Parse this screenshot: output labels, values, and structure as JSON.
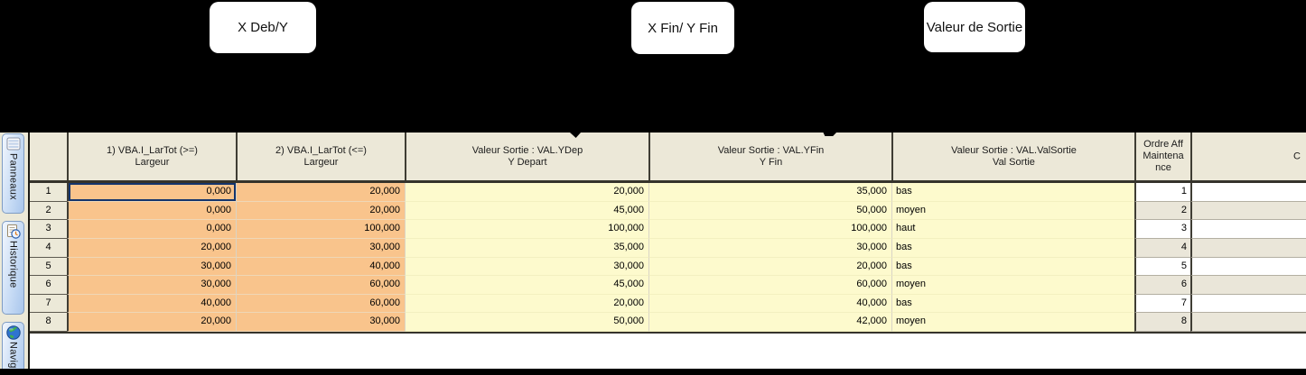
{
  "annotations": {
    "callouts": [
      {
        "label": "X Deb/Y"
      },
      {
        "label": "X Fin/ Y Fin"
      },
      {
        "label": "Valeur de Sortie"
      }
    ]
  },
  "sidebar": {
    "tabs": [
      {
        "label": "Panneaux",
        "icon": "panels-icon"
      },
      {
        "label": "Historique",
        "icon": "history-clock-icon"
      },
      {
        "label": "Navig",
        "icon": "globe-icon"
      }
    ]
  },
  "table": {
    "columns": [
      {
        "key": "row",
        "label_lines": []
      },
      {
        "key": "larg_min",
        "label_lines": [
          "1) VBA.I_LarTot (>=)",
          "Largeur"
        ]
      },
      {
        "key": "larg_max",
        "label_lines": [
          "2) VBA.I_LarTot (<=)",
          "Largeur"
        ]
      },
      {
        "key": "y_depart",
        "label_lines": [
          "Valeur Sortie : VAL.YDep",
          "Y Depart"
        ]
      },
      {
        "key": "y_fin",
        "label_lines": [
          "Valeur Sortie : VAL.YFin",
          "Y Fin"
        ]
      },
      {
        "key": "val_sortie",
        "label_lines": [
          "Valeur Sortie : VAL.ValSortie",
          "Val Sortie"
        ]
      },
      {
        "key": "ordre_aff",
        "label_lines": [
          "Ordre Aff",
          "Maintena",
          "nce"
        ],
        "stripe": true
      },
      {
        "key": "next_col",
        "label_lines": [
          "C"
        ],
        "stripe": true
      }
    ],
    "rows": [
      {
        "cells": [
          "1",
          "0,000",
          "20,000",
          "20,000",
          "35,000",
          "bas",
          "1",
          ""
        ]
      },
      {
        "cells": [
          "2",
          "0,000",
          "20,000",
          "45,000",
          "50,000",
          "moyen",
          "2",
          ""
        ]
      },
      {
        "cells": [
          "3",
          "0,000",
          "100,000",
          "100,000",
          "100,000",
          "haut",
          "3",
          ""
        ]
      },
      {
        "cells": [
          "4",
          "20,000",
          "30,000",
          "35,000",
          "30,000",
          "bas",
          "4",
          ""
        ]
      },
      {
        "cells": [
          "5",
          "30,000",
          "40,000",
          "30,000",
          "20,000",
          "bas",
          "5",
          ""
        ]
      },
      {
        "cells": [
          "6",
          "30,000",
          "60,000",
          "45,000",
          "60,000",
          "moyen",
          "6",
          ""
        ]
      },
      {
        "cells": [
          "7",
          "40,000",
          "60,000",
          "20,000",
          "40,000",
          "bas",
          "7",
          ""
        ]
      },
      {
        "cells": [
          "8",
          "20,000",
          "30,000",
          "50,000",
          "42,000",
          "moyen",
          "8",
          ""
        ]
      }
    ],
    "selected": {
      "row_index": 0,
      "col_index": 1
    }
  },
  "colors": {
    "annotation_background": "#000000",
    "callout_background": "#ffffff",
    "condition_cell_orange": "#f9c48c",
    "output_cell_yellow": "#fdfacd",
    "header_beige": "#ece8d8",
    "stripe_beige": "#eae6d9",
    "selection_border_navy": "#14346c",
    "tab_blue": "#aac7ec"
  }
}
